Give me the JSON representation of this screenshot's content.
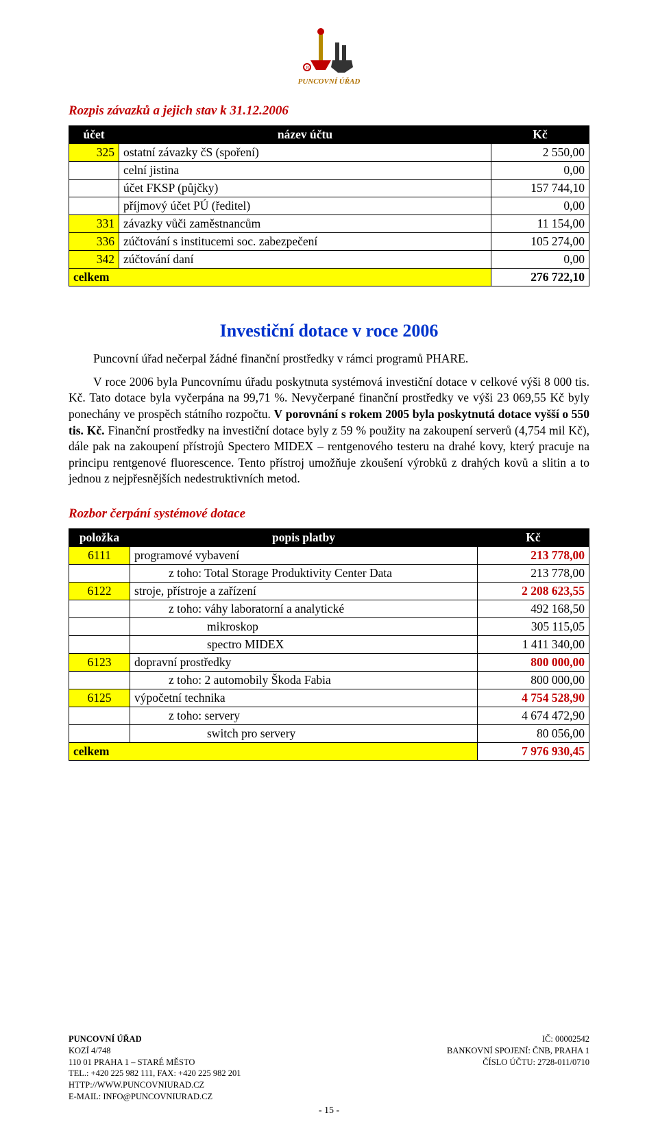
{
  "logo_caption": "PUNCOVNÍ ÚŘAD",
  "title1": "Rozpis závazků a jejich stav k 31.12.2006",
  "table1": {
    "headers": [
      "účet",
      "název účtu",
      "Kč"
    ],
    "rows": [
      {
        "a": "325",
        "b": "ostatní závazky čS (spoření)",
        "c": "2 550,00",
        "ya": "1",
        "bold": "0"
      },
      {
        "a": "",
        "b": "celní jistina",
        "c": "0,00",
        "ya": "0",
        "bold": "0"
      },
      {
        "a": "",
        "b": "účet FKSP (půjčky)",
        "c": "157 744,10",
        "ya": "0",
        "bold": "0"
      },
      {
        "a": "",
        "b": "příjmový účet PÚ (ředitel)",
        "c": "0,00",
        "ya": "0",
        "bold": "0"
      },
      {
        "a": "331",
        "b": "závazky vůči zaměstnancům",
        "c": "11 154,00",
        "ya": "1",
        "bold": "0"
      },
      {
        "a": "336",
        "b": "zúčtování s institucemi soc. zabezpečení",
        "c": "105 274,00",
        "ya": "1",
        "bold": "0"
      },
      {
        "a": "342",
        "b": "zúčtování daní",
        "c": "0,00",
        "ya": "1",
        "bold": "0"
      },
      {
        "a": "celkem",
        "b": "",
        "c": "276 722,10",
        "ya": "1",
        "bold": "1",
        "span": "1"
      }
    ]
  },
  "section_title": "Investiční dotace v roce 2006",
  "para1": "Puncovní úřad nečerpal žádné finanční prostředky v rámci programů PHARE.",
  "para2_a": "V roce 2006 byla Puncovnímu úřadu poskytnuta systémová investiční dotace v celkové výši 8 000 tis. Kč. Tato dotace byla vyčerpána na 99,71 %. Nevyčerpané finanční prostředky ve výši 23 069,55 Kč byly ponechány ve prospěch státního rozpočtu. ",
  "para2_b": "V porovnání s rokem 2005 byla poskytnutá dotace vyšší o 550 tis. Kč.",
  "para2_c": " Finanční prostředky na investiční dotace byly z 59 % použity na zakoupení serverů (4,754 mil Kč), dále pak na zakoupení přístrojů Spectero MIDEX – rentgenového testeru na drahé kovy, který pracuje na principu rentgenové fluorescence. Tento přístroj umožňuje zkoušení výrobků z drahých kovů a slitin a to jednou z nejpřesnějších nedestruktivních metod.",
  "title2": "Rozbor čerpání systémové dotace",
  "table2": {
    "headers": [
      "položka",
      "popis platby",
      "Kč"
    ],
    "rows": [
      {
        "a": "6111",
        "b": "programové vybavení",
        "c": "213 778,00",
        "ya": "1",
        "cb": "1"
      },
      {
        "a": "",
        "b": "z toho:  Total Storage Produktivity Center Data",
        "c": "213 778,00",
        "ya": "0",
        "ind": "1"
      },
      {
        "a": "6122",
        "b": "stroje, přístroje a zařízení",
        "c": "2 208 623,55",
        "ya": "1",
        "cb": "1"
      },
      {
        "a": "",
        "b": "z toho: váhy laboratorní a analytické",
        "c": "492 168,50",
        "ya": "0",
        "ind": "1"
      },
      {
        "a": "",
        "b": "mikroskop",
        "c": "305 115,05",
        "ya": "0",
        "ind": "2"
      },
      {
        "a": "",
        "b": "spectro MIDEX",
        "c": "1 411 340,00",
        "ya": "0",
        "ind": "2"
      },
      {
        "a": "6123",
        "b": "dopravní prostředky",
        "c": "800 000,00",
        "ya": "1",
        "cb": "1"
      },
      {
        "a": "",
        "b": "z toho: 2 automobily Škoda Fabia",
        "c": "800 000,00",
        "ya": "0",
        "ind": "1"
      },
      {
        "a": "6125",
        "b": "výpočetní technika",
        "c": "4 754 528,90",
        "ya": "1",
        "cb": "1"
      },
      {
        "a": "",
        "b": "z toho: servery",
        "c": "4 674 472,90",
        "ya": "0",
        "ind": "1"
      },
      {
        "a": "",
        "b": "switch pro servery",
        "c": "80 056,00",
        "ya": "0",
        "ind": "2"
      },
      {
        "a": "celkem",
        "b": "",
        "c": "7 976 930,45",
        "ya": "1",
        "cb": "1",
        "span": "1",
        "rb": "1"
      }
    ]
  },
  "footer": {
    "left": [
      "PUNCOVNÍ ÚŘAD",
      "KOZÍ 4/748",
      "110 01 PRAHA 1 – STARÉ MĚSTO",
      "TEL.: +420 225 982 111, FAX: +420 225 982 201",
      "HTTP://WWW.PUNCOVNIURAD.CZ",
      "E-MAIL: INFO@PUNCOVNIURAD.CZ"
    ],
    "right": [
      "IČ: 00002542",
      "BANKOVNÍ SPOJENÍ: ČNB, PRAHA 1",
      "ČÍSLO ÚČTU: 2728-011/0710"
    ]
  },
  "page_number": "- 15 -",
  "colors": {
    "accent": "#c00000",
    "blue": "#0033cc",
    "yellow": "#ffff00"
  }
}
